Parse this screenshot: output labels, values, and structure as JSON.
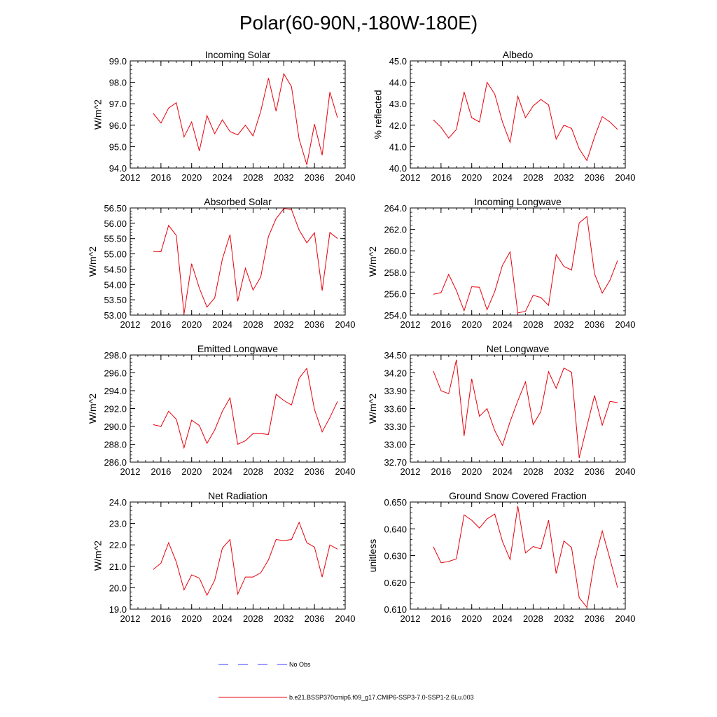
{
  "title": "Polar(60-90N,-180W-180E)",
  "legend": {
    "no_obs": "No Obs",
    "model_run": "b.e21.BSSP370cmip6.f09_g17.CMIP6-SSP3-7.0-SSP1-2.6Lu.003"
  },
  "colors": {
    "series": "#e8000b",
    "no_obs": "#3a3aff",
    "axis": "#000000"
  },
  "chart_data": [
    {
      "type": "line",
      "id": "incoming-solar",
      "title": "Incoming Solar",
      "ylabel": "W/m^2",
      "xlabel": "",
      "xlim": [
        2012,
        2040
      ],
      "ylim": [
        94.0,
        99.0
      ],
      "xticks": [
        2012,
        2016,
        2020,
        2024,
        2028,
        2032,
        2036,
        2040
      ],
      "yticks": [
        "94.0",
        "95.0",
        "96.0",
        "97.0",
        "98.0",
        "99.0"
      ],
      "x": [
        2015,
        2016,
        2017,
        2018,
        2019,
        2020,
        2021,
        2022,
        2023,
        2024,
        2025,
        2026,
        2027,
        2028,
        2029,
        2030,
        2031,
        2032,
        2033,
        2034,
        2035,
        2036,
        2037,
        2038,
        2039
      ],
      "values": [
        96.55,
        96.1,
        96.8,
        97.05,
        95.45,
        96.15,
        94.8,
        96.45,
        95.6,
        96.25,
        95.7,
        95.55,
        96.0,
        95.5,
        96.65,
        98.2,
        96.65,
        98.4,
        97.8,
        95.35,
        94.15,
        96.05,
        94.6,
        97.55,
        96.35
      ]
    },
    {
      "type": "line",
      "id": "albedo",
      "title": "Albedo",
      "ylabel": "% reflected",
      "xlabel": "",
      "xlim": [
        2012,
        2040
      ],
      "ylim": [
        40.0,
        45.0
      ],
      "xticks": [
        2012,
        2016,
        2020,
        2024,
        2028,
        2032,
        2036,
        2040
      ],
      "yticks": [
        "40.0",
        "41.0",
        "42.0",
        "43.0",
        "44.0",
        "45.0"
      ],
      "x": [
        2015,
        2016,
        2017,
        2018,
        2019,
        2020,
        2021,
        2022,
        2023,
        2024,
        2025,
        2026,
        2027,
        2028,
        2029,
        2030,
        2031,
        2032,
        2033,
        2034,
        2035,
        2036,
        2037,
        2038,
        2039
      ],
      "values": [
        42.25,
        41.9,
        41.4,
        41.8,
        43.55,
        42.35,
        42.15,
        44.0,
        43.45,
        42.15,
        41.2,
        43.35,
        42.35,
        42.9,
        43.2,
        42.95,
        41.35,
        42.0,
        41.85,
        40.9,
        40.35,
        41.45,
        42.4,
        42.15,
        41.8
      ]
    },
    {
      "type": "line",
      "id": "absorbed-solar",
      "title": "Absorbed Solar",
      "ylabel": "W/m^2",
      "xlabel": "",
      "xlim": [
        2012,
        2040
      ],
      "ylim": [
        53.0,
        56.5
      ],
      "xticks": [
        2012,
        2016,
        2020,
        2024,
        2028,
        2032,
        2036,
        2040
      ],
      "yticks": [
        "53.00",
        "53.50",
        "54.00",
        "54.50",
        "55.00",
        "55.50",
        "56.00",
        "56.50"
      ],
      "x": [
        2015,
        2016,
        2017,
        2018,
        2019,
        2020,
        2021,
        2022,
        2023,
        2024,
        2025,
        2026,
        2027,
        2028,
        2029,
        2030,
        2031,
        2032,
        2033,
        2034,
        2035,
        2036,
        2037,
        2038,
        2039
      ],
      "values": [
        55.08,
        55.07,
        55.93,
        55.6,
        53.03,
        54.68,
        53.88,
        53.26,
        53.56,
        54.83,
        55.63,
        53.45,
        54.53,
        53.82,
        54.25,
        55.57,
        56.15,
        56.48,
        56.45,
        55.78,
        55.36,
        55.69,
        53.8,
        55.7,
        55.5
      ]
    },
    {
      "type": "line",
      "id": "incoming-longwave",
      "title": "Incoming Longwave",
      "ylabel": "W/m^2",
      "xlabel": "",
      "xlim": [
        2012,
        2040
      ],
      "ylim": [
        254.0,
        264.0
      ],
      "xticks": [
        2012,
        2016,
        2020,
        2024,
        2028,
        2032,
        2036,
        2040
      ],
      "yticks": [
        "254.0",
        "256.0",
        "258.0",
        "260.0",
        "262.0",
        "264.0"
      ],
      "x": [
        2015,
        2016,
        2017,
        2018,
        2019,
        2020,
        2021,
        2022,
        2023,
        2024,
        2025,
        2026,
        2027,
        2028,
        2029,
        2030,
        2031,
        2032,
        2033,
        2034,
        2035,
        2036,
        2037,
        2038,
        2039
      ],
      "values": [
        255.95,
        256.1,
        257.8,
        256.3,
        254.4,
        256.65,
        256.6,
        254.5,
        256.2,
        258.65,
        259.9,
        254.2,
        254.35,
        255.85,
        255.65,
        254.9,
        259.65,
        258.55,
        258.2,
        262.6,
        263.2,
        257.85,
        256.05,
        257.25,
        259.1
      ]
    },
    {
      "type": "line",
      "id": "emitted-longwave",
      "title": "Emitted Longwave",
      "ylabel": "W/m^2",
      "xlabel": "",
      "xlim": [
        2012,
        2040
      ],
      "ylim": [
        286.0,
        298.0
      ],
      "xticks": [
        2012,
        2016,
        2020,
        2024,
        2028,
        2032,
        2036,
        2040
      ],
      "yticks": [
        "286.0",
        "288.0",
        "290.0",
        "292.0",
        "294.0",
        "296.0",
        "298.0"
      ],
      "x": [
        2015,
        2016,
        2017,
        2018,
        2019,
        2020,
        2021,
        2022,
        2023,
        2024,
        2025,
        2026,
        2027,
        2028,
        2029,
        2030,
        2031,
        2032,
        2033,
        2034,
        2035,
        2036,
        2037,
        2038,
        2039
      ],
      "values": [
        290.2,
        290.0,
        291.7,
        290.8,
        287.6,
        290.7,
        290.1,
        288.1,
        289.6,
        291.7,
        293.2,
        288.0,
        288.4,
        289.2,
        289.2,
        289.1,
        293.6,
        292.9,
        292.4,
        295.4,
        296.5,
        291.9,
        289.4,
        291.0,
        292.8
      ]
    },
    {
      "type": "line",
      "id": "net-longwave",
      "title": "Net Longwave",
      "ylabel": "W/m^2",
      "xlabel": "",
      "xlim": [
        2012,
        2040
      ],
      "ylim": [
        32.7,
        34.5
      ],
      "xticks": [
        2012,
        2016,
        2020,
        2024,
        2028,
        2032,
        2036,
        2040
      ],
      "yticks": [
        "32.70",
        "33.00",
        "33.30",
        "33.60",
        "33.90",
        "34.20",
        "34.50"
      ],
      "x": [
        2015,
        2016,
        2017,
        2018,
        2019,
        2020,
        2021,
        2022,
        2023,
        2024,
        2025,
        2026,
        2027,
        2028,
        2029,
        2030,
        2031,
        2032,
        2033,
        2034,
        2035,
        2036,
        2037,
        2038,
        2039
      ],
      "values": [
        34.23,
        33.9,
        33.85,
        34.42,
        33.14,
        34.1,
        33.47,
        33.6,
        33.23,
        32.98,
        33.38,
        33.73,
        34.05,
        33.33,
        33.55,
        34.22,
        33.94,
        34.28,
        34.21,
        32.77,
        33.3,
        33.82,
        33.32,
        33.72,
        33.7
      ]
    },
    {
      "type": "line",
      "id": "net-radiation",
      "title": "Net Radiation",
      "ylabel": "W/m^2",
      "xlabel": "",
      "xlim": [
        2012,
        2040
      ],
      "ylim": [
        19.0,
        24.0
      ],
      "xticks": [
        2012,
        2016,
        2020,
        2024,
        2028,
        2032,
        2036,
        2040
      ],
      "yticks": [
        "19.0",
        "20.0",
        "21.0",
        "22.0",
        "23.0",
        "24.0"
      ],
      "x": [
        2015,
        2016,
        2017,
        2018,
        2019,
        2020,
        2021,
        2022,
        2023,
        2024,
        2025,
        2026,
        2027,
        2028,
        2029,
        2030,
        2031,
        2032,
        2033,
        2034,
        2035,
        2036,
        2037,
        2038,
        2039
      ],
      "values": [
        20.85,
        21.15,
        22.1,
        21.2,
        19.9,
        20.6,
        20.45,
        19.65,
        20.35,
        21.85,
        22.25,
        19.7,
        20.5,
        20.5,
        20.7,
        21.3,
        22.25,
        22.2,
        22.25,
        23.05,
        22.1,
        21.9,
        20.5,
        22.0,
        21.8
      ]
    },
    {
      "type": "line",
      "id": "ground-snow-covered-fraction",
      "title": "Ground Snow Covered Fraction",
      "ylabel": "unitless",
      "xlabel": "",
      "xlim": [
        2012,
        2040
      ],
      "ylim": [
        0.61,
        0.65
      ],
      "xticks": [
        2012,
        2016,
        2020,
        2024,
        2028,
        2032,
        2036,
        2040
      ],
      "yticks": [
        "0.610",
        "0.620",
        "0.630",
        "0.640",
        "0.650"
      ],
      "x": [
        2015,
        2016,
        2017,
        2018,
        2019,
        2020,
        2021,
        2022,
        2023,
        2024,
        2025,
        2026,
        2027,
        2028,
        2029,
        2030,
        2031,
        2032,
        2033,
        2034,
        2035,
        2036,
        2037,
        2038,
        2039
      ],
      "values": [
        0.6333,
        0.6273,
        0.6278,
        0.6288,
        0.6452,
        0.6432,
        0.6403,
        0.6437,
        0.6455,
        0.6353,
        0.6285,
        0.6485,
        0.631,
        0.6334,
        0.6325,
        0.6432,
        0.6233,
        0.6355,
        0.633,
        0.6143,
        0.6107,
        0.628,
        0.6392,
        0.6288,
        0.618
      ]
    }
  ]
}
